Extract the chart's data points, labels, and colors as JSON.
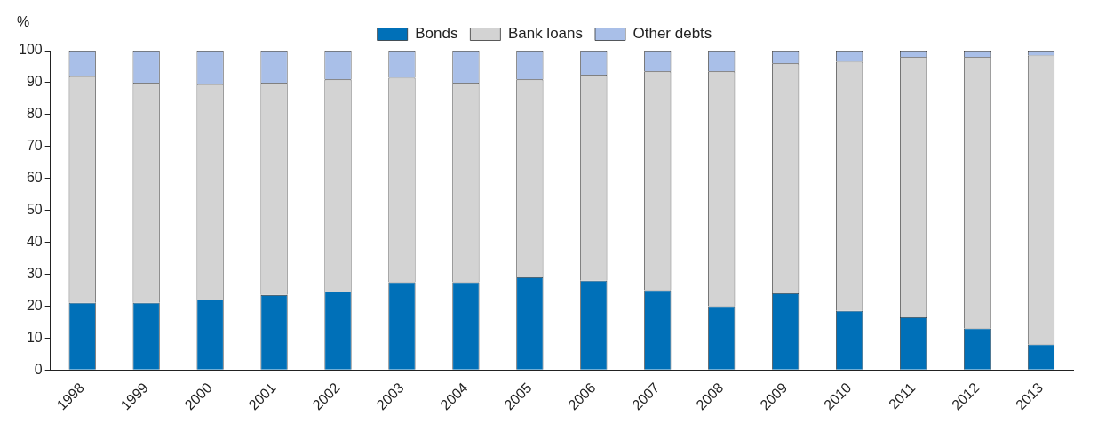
{
  "chart_data": {
    "type": "bar",
    "stacked": true,
    "ylabel": "%",
    "categories": [
      "1998",
      "1999",
      "2000",
      "2001",
      "2002",
      "2003",
      "2004",
      "2005",
      "2006",
      "2007",
      "2008",
      "2009",
      "2010",
      "2011",
      "2012",
      "2013"
    ],
    "series": [
      {
        "name": "Bonds",
        "color": "#0070b8",
        "values": [
          21,
          21,
          22,
          23.5,
          24.5,
          27.5,
          27.5,
          29,
          28,
          25,
          20,
          24,
          18.5,
          16.5,
          13,
          8
        ]
      },
      {
        "name": "Bank loans",
        "color": "#d3d3d3",
        "values": [
          71,
          69,
          67.5,
          66.5,
          66.5,
          64,
          62.5,
          62,
          64.5,
          68.5,
          73.5,
          72,
          78,
          81.5,
          85,
          90.5
        ]
      },
      {
        "name": "Other debts",
        "color": "#a9bfe8",
        "values": [
          8,
          10,
          10.5,
          10,
          9,
          8.5,
          10,
          9,
          7.5,
          6.5,
          6.5,
          4,
          3.5,
          2,
          2,
          1.5
        ]
      }
    ],
    "ylim": [
      0,
      100
    ],
    "yticks": [
      0,
      10,
      20,
      30,
      40,
      50,
      60,
      70,
      80,
      90,
      100
    ],
    "grid": false,
    "legend": "top"
  }
}
